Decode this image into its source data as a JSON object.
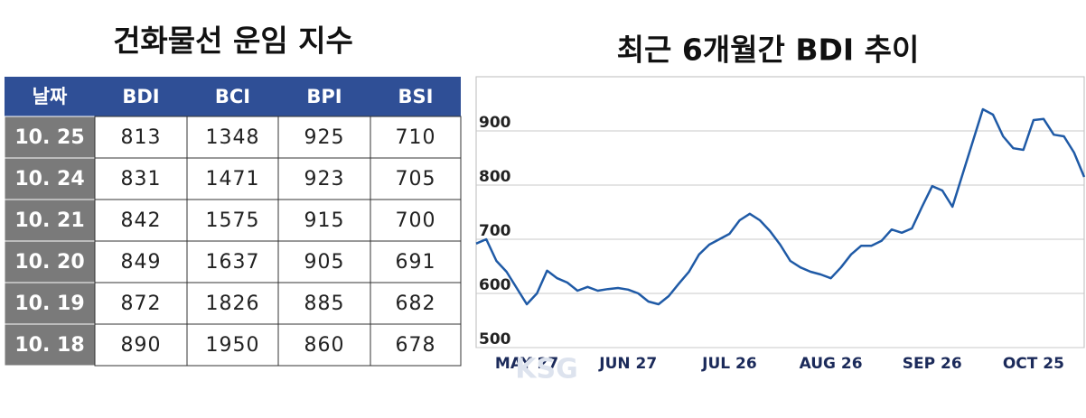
{
  "table": {
    "title": "건화물선 운임 지수",
    "header": [
      "날짜",
      "BDI",
      "BCI",
      "BPI",
      "BSI"
    ],
    "rows": [
      [
        "10. 25",
        "813",
        "1348",
        "925",
        "710"
      ],
      [
        "10. 24",
        "831",
        "1471",
        "923",
        "705"
      ],
      [
        "10. 21",
        "842",
        "1575",
        "915",
        "700"
      ],
      [
        "10. 20",
        "849",
        "1637",
        "905",
        "691"
      ],
      [
        "10. 19",
        "872",
        "1826",
        "885",
        "682"
      ],
      [
        "10. 18",
        "890",
        "1950",
        "860",
        "678"
      ]
    ]
  },
  "chart_data": {
    "type": "line",
    "title": "최근 6개월간 BDI 추이",
    "categories": [
      null,
      null,
      null,
      null,
      null,
      "MAY 27",
      null,
      null,
      null,
      null,
      null,
      null,
      null,
      null,
      null,
      "JUN 27",
      null,
      null,
      null,
      null,
      null,
      null,
      null,
      null,
      null,
      "JUL 26",
      null,
      null,
      null,
      null,
      null,
      null,
      null,
      null,
      null,
      "AUG 26",
      null,
      null,
      null,
      null,
      null,
      null,
      null,
      null,
      null,
      "SEP 26",
      null,
      null,
      null,
      null,
      null,
      null,
      null,
      null,
      null,
      "OCT 25",
      null,
      null,
      null,
      null,
      null
    ],
    "series": [
      {
        "name": "BDI",
        "color": "#1f5aa6",
        "values": [
          692,
          700,
          660,
          640,
          610,
          580,
          600,
          642,
          628,
          620,
          605,
          612,
          605,
          608,
          610,
          607,
          600,
          585,
          580,
          595,
          618,
          640,
          672,
          690,
          700,
          710,
          735,
          747,
          735,
          715,
          690,
          660,
          648,
          640,
          635,
          628,
          648,
          672,
          688,
          688,
          697,
          718,
          712,
          720,
          760,
          798,
          790,
          760,
          820,
          880,
          940,
          930,
          890,
          868,
          865,
          920,
          922,
          893,
          890,
          860,
          815
        ]
      }
    ],
    "ylim": [
      500,
      1000
    ],
    "yticks": [
      500,
      600,
      700,
      800,
      900
    ],
    "grid": true
  },
  "watermark": "KSG"
}
